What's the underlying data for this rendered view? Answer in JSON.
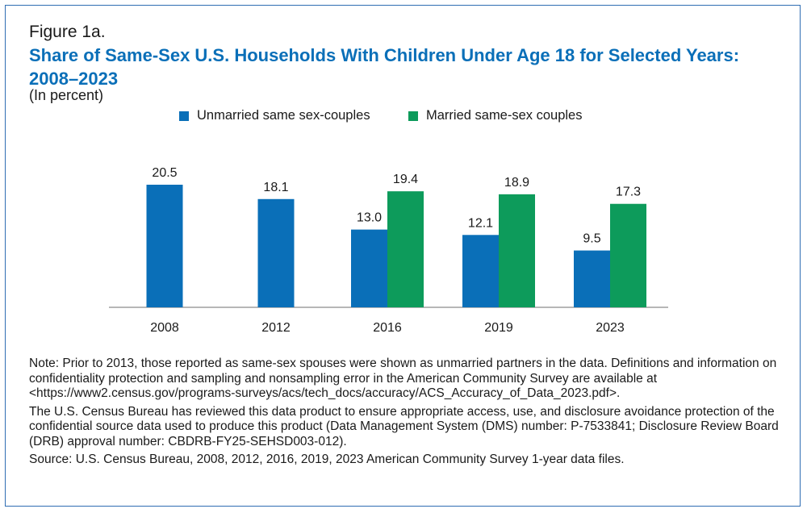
{
  "figure_label": "Figure 1a.",
  "title": "Share of Same-Sex U.S. Households With Children Under Age 18 for Selected Years: 2008–2023",
  "subtitle": "(In percent)",
  "colors": {
    "unmarried": "#0a6fb8",
    "married": "#0d9b5b",
    "border": "#2f6db3",
    "title": "#0a6fb8"
  },
  "chart_data": {
    "type": "bar",
    "title": "Share of Same-Sex U.S. Households With Children Under Age 18 for Selected Years: 2008–2023",
    "ylabel": "(In percent)",
    "xlabel": "",
    "categories": [
      "2008",
      "2012",
      "2016",
      "2019",
      "2023"
    ],
    "series": [
      {
        "name": "Unmarried same sex-couples",
        "color": "#0a6fb8",
        "values": [
          20.5,
          18.1,
          13.0,
          12.1,
          9.5
        ]
      },
      {
        "name": "Married same-sex couples",
        "color": "#0d9b5b",
        "values": [
          null,
          null,
          19.4,
          18.9,
          17.3
        ]
      }
    ],
    "ylim": [
      0,
      20.5
    ],
    "legend_position": "top-center",
    "grid": false
  },
  "notes": {
    "note": "Note: Prior to 2013, those reported as same-sex spouses were shown as unmarried partners in the data. Definitions and information on confidentiality protection and sampling and nonsampling error in the American Community Survey are available at <https://www2.census.gov/programs-surveys/acs/tech_docs/accuracy/ACS_Accuracy_of_Data_2023.pdf>.",
    "disclosure": "The U.S. Census Bureau has reviewed this data product to ensure appropriate access, use, and disclosure avoidance protection of the confidential source data used to produce this product (Data Management System (DMS) number: P-7533841; Disclosure Review Board (DRB) approval number: CBDRB-FY25-SEHSD003-012).",
    "source": "Source: U.S. Census Bureau, 2008, 2012, 2016, 2019, 2023 American Community Survey 1-year data files."
  }
}
